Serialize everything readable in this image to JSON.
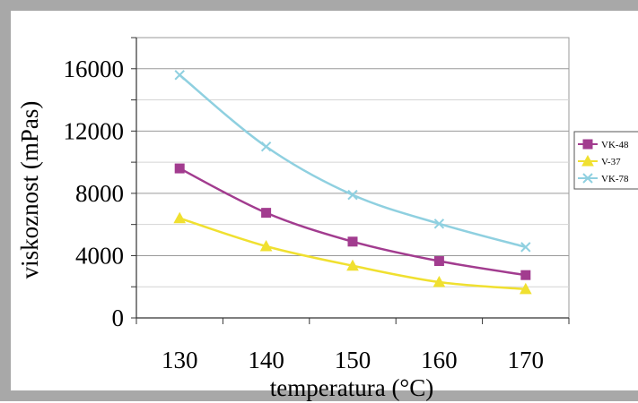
{
  "chart_data": {
    "type": "line",
    "xlabel": "temperatura (°C)",
    "ylabel": "viskoznost (mPas)",
    "categories": [
      "130",
      "140",
      "150",
      "160",
      "170"
    ],
    "ylim": [
      0,
      18000
    ],
    "yticks": [
      "0",
      "4000",
      "8000",
      "12000",
      "16000"
    ],
    "ytick_values": [
      0,
      4000,
      8000,
      12000,
      16000
    ],
    "grid": true,
    "legend_position": "right",
    "series": [
      {
        "name": "VK-48",
        "values": [
          9600,
          6750,
          4900,
          3650,
          2750
        ],
        "color": "#a23c8f",
        "marker": "square"
      },
      {
        "name": "V-37",
        "values": [
          6400,
          4600,
          3350,
          2300,
          1850
        ],
        "color": "#f0e030",
        "marker": "triangle"
      },
      {
        "name": "VK-78",
        "values": [
          15600,
          11000,
          7900,
          6050,
          4550
        ],
        "color": "#8fd0e0",
        "marker": "x"
      }
    ]
  },
  "colors": {
    "frame": "#a8a8a8",
    "gridline": "#9a9a9a",
    "axis": "#333333"
  }
}
